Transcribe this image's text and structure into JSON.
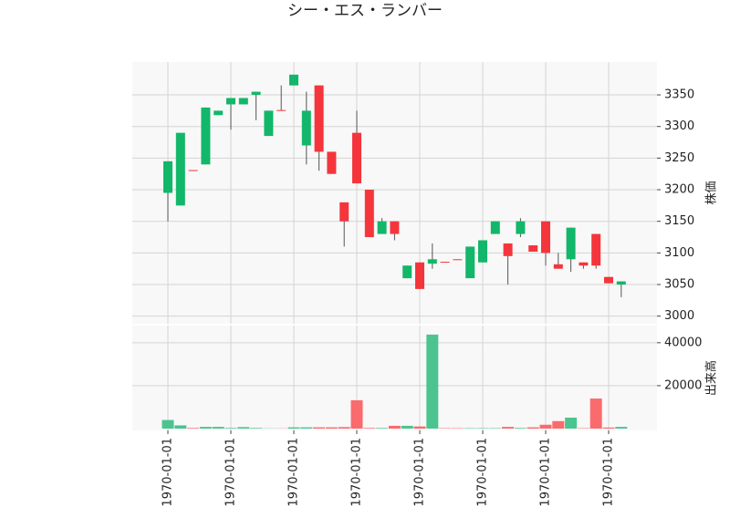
{
  "chart_data": [
    {
      "type": "candlestick",
      "title": "シー・エス・ランバー",
      "ylabel": "株価",
      "open": [
        3195,
        3175,
        3231,
        3240,
        3318,
        3335,
        3335,
        3350,
        3285,
        3326,
        3365,
        3270,
        3365,
        3260,
        3180,
        3290,
        3200,
        3130,
        3150,
        3060,
        3085,
        3083,
        3086,
        3090,
        3060,
        3085,
        3130,
        3115,
        3130,
        3112,
        3150,
        3082,
        3090,
        3085,
        3130,
        3062,
        3050
      ],
      "high": [
        3245,
        3290,
        3231,
        3330,
        3325,
        3345,
        3345,
        3355,
        3325,
        3365,
        3382,
        3355,
        3365,
        3260,
        3180,
        3325,
        3200,
        3155,
        3150,
        3080,
        3085,
        3115,
        3086,
        3090,
        3110,
        3120,
        3150,
        3115,
        3155,
        3112,
        3150,
        3100,
        3140,
        3085,
        3130,
        3062,
        3055
      ],
      "low": [
        3150,
        3175,
        3230,
        3240,
        3318,
        3295,
        3335,
        3310,
        3285,
        3325,
        3365,
        3240,
        3230,
        3225,
        3110,
        3210,
        3125,
        3130,
        3120,
        3060,
        3043,
        3075,
        3085,
        3089,
        3060,
        3085,
        3130,
        3050,
        3125,
        3102,
        3080,
        3075,
        3070,
        3075,
        3075,
        3052,
        3030
      ],
      "close": [
        3245,
        3290,
        3230,
        3330,
        3325,
        3345,
        3345,
        3355,
        3325,
        3325,
        3382,
        3325,
        3260,
        3225,
        3150,
        3210,
        3125,
        3150,
        3130,
        3080,
        3043,
        3090,
        3085,
        3089,
        3110,
        3120,
        3150,
        3095,
        3150,
        3102,
        3100,
        3075,
        3140,
        3080,
        3080,
        3052,
        3055
      ],
      "up_color": "#12b76a",
      "down_color": "#f5353c",
      "ylim": [
        2988,
        3402
      ],
      "yticks": [
        3000,
        3050,
        3100,
        3150,
        3200,
        3250,
        3300,
        3350
      ],
      "grid": true
    },
    {
      "type": "bar",
      "ylabel": "出来高",
      "x": [
        "1970-01-01",
        null,
        null,
        null,
        null,
        "1970-01-01",
        null,
        null,
        null,
        null,
        "1970-01-01",
        null,
        null,
        null,
        null,
        "1970-01-01",
        null,
        null,
        null,
        null,
        "1970-01-01",
        null,
        null,
        null,
        null,
        "1970-01-01",
        null,
        null,
        null,
        null,
        "1970-01-01",
        null,
        null,
        null,
        null,
        "1970-01-01",
        null
      ],
      "values": [
        4000,
        1500,
        300,
        800,
        800,
        300,
        700,
        300,
        100,
        100,
        600,
        600,
        600,
        600,
        700,
        13200,
        300,
        300,
        1300,
        1300,
        1000,
        43800,
        200,
        200,
        200,
        200,
        200,
        800,
        300,
        600,
        1800,
        3500,
        5100,
        200,
        14000,
        500,
        800
      ],
      "up_color": "#4cc490",
      "down_color": "#fa6b6e",
      "ylim": [
        -850,
        48000
      ],
      "yticks": [
        20000,
        40000
      ],
      "grid": true
    }
  ]
}
